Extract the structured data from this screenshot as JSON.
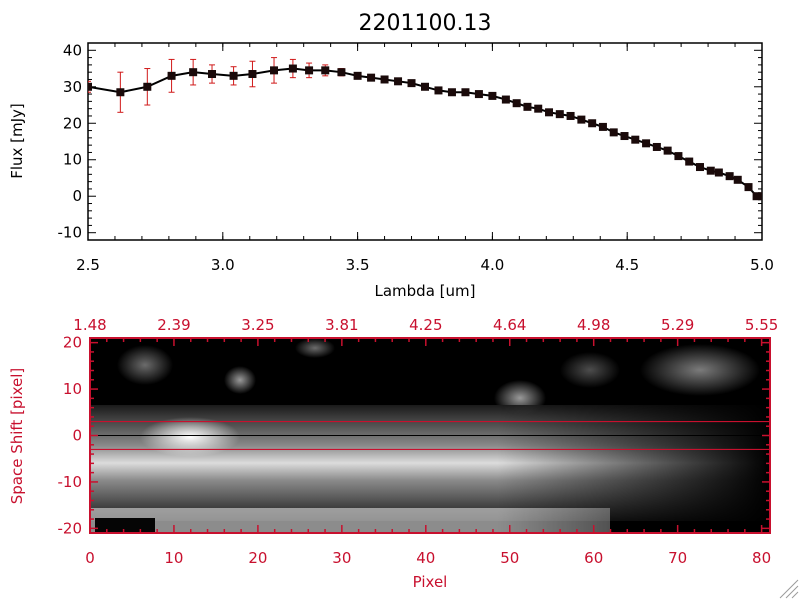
{
  "title": "2201100.13",
  "colors": {
    "axis_black": "#000000",
    "accent_red": "#c8102e",
    "error_bar": "#d01818",
    "marker": "#1a0a0a"
  },
  "chart_data": [
    {
      "type": "line",
      "title": "2201100.13",
      "xlabel": "Lambda [um]",
      "ylabel": "Flux [mJy]",
      "xlim": [
        2.5,
        5.0
      ],
      "ylim": [
        -12,
        42
      ],
      "x_ticks": [
        2.5,
        3.0,
        3.5,
        4.0,
        4.5,
        5.0
      ],
      "x_tick_labels": [
        "2.5",
        "3.0",
        "3.5",
        "4.0",
        "4.5",
        "5.0"
      ],
      "y_ticks": [
        -10,
        0,
        10,
        20,
        30,
        40
      ],
      "y_tick_labels": [
        "-10",
        "0",
        "10",
        "20",
        "30",
        "40"
      ],
      "grid": false,
      "series": [
        {
          "x": [
            2.5,
            2.62,
            2.72,
            2.81,
            2.89,
            2.96,
            3.04,
            3.11,
            3.19,
            3.26,
            3.32,
            3.38,
            3.44,
            3.5,
            3.55,
            3.6,
            3.65,
            3.7,
            3.75,
            3.8,
            3.85,
            3.9,
            3.95,
            4.0,
            4.05,
            4.09,
            4.13,
            4.17,
            4.21,
            4.25,
            4.29,
            4.33,
            4.37,
            4.41,
            4.45,
            4.49,
            4.53,
            4.57,
            4.61,
            4.65,
            4.69,
            4.73,
            4.77,
            4.81,
            4.84,
            4.88,
            4.91,
            4.95,
            4.98,
            5.0
          ],
          "y": [
            30,
            28.5,
            30,
            33,
            34,
            33.5,
            33,
            33.5,
            34.5,
            35,
            34.5,
            34.5,
            34,
            33,
            32.5,
            32,
            31.5,
            31,
            30,
            29,
            28.5,
            28.5,
            28,
            27.5,
            26.5,
            25.5,
            24.5,
            24,
            23,
            22.5,
            22,
            21,
            20,
            19,
            17.5,
            16.5,
            15.5,
            14.5,
            13.5,
            12.5,
            11,
            9.5,
            8,
            7,
            6.5,
            5.5,
            4.5,
            2.5,
            0,
            0
          ],
          "yerr": [
            1.5,
            5.5,
            5,
            4.5,
            3.5,
            2.5,
            2.5,
            3.5,
            3.5,
            2.5,
            2,
            1.5,
            1,
            0.8,
            0.7,
            0.7,
            0.7,
            0.7,
            0.7,
            0.7,
            0.7,
            0.7,
            0.7,
            0.7,
            0.7,
            0.7,
            0.7,
            0.7,
            0.7,
            0.7,
            0.7,
            0.7,
            0.7,
            0.7,
            0.7,
            0.7,
            0.7,
            0.7,
            0.7,
            0.7,
            0.7,
            0.7,
            0.7,
            0.7,
            0.7,
            0.7,
            0.7,
            0.7,
            0.7,
            0.7
          ]
        }
      ]
    },
    {
      "type": "heatmap",
      "xlabel": "Pixel",
      "ylabel": "Space Shift [pixel]",
      "xlim": [
        0,
        81
      ],
      "ylim": [
        -21,
        21
      ],
      "x_ticks": [
        0,
        10,
        20,
        30,
        40,
        50,
        60,
        70,
        80
      ],
      "x_tick_labels": [
        "0",
        "10",
        "20",
        "30",
        "40",
        "50",
        "60",
        "70",
        "80"
      ],
      "y_ticks": [
        -20,
        -10,
        0,
        10,
        20
      ],
      "y_tick_labels": [
        "-20",
        "-10",
        "0",
        "10",
        "20"
      ],
      "top_tick_labels": [
        "1.48",
        "2.39",
        "3.25",
        "3.81",
        "4.25",
        "4.64",
        "4.98",
        "5.29",
        "5.55"
      ],
      "extraction_window": [
        -3,
        3
      ],
      "trace_row": 0,
      "colormap": "grayscale"
    }
  ]
}
